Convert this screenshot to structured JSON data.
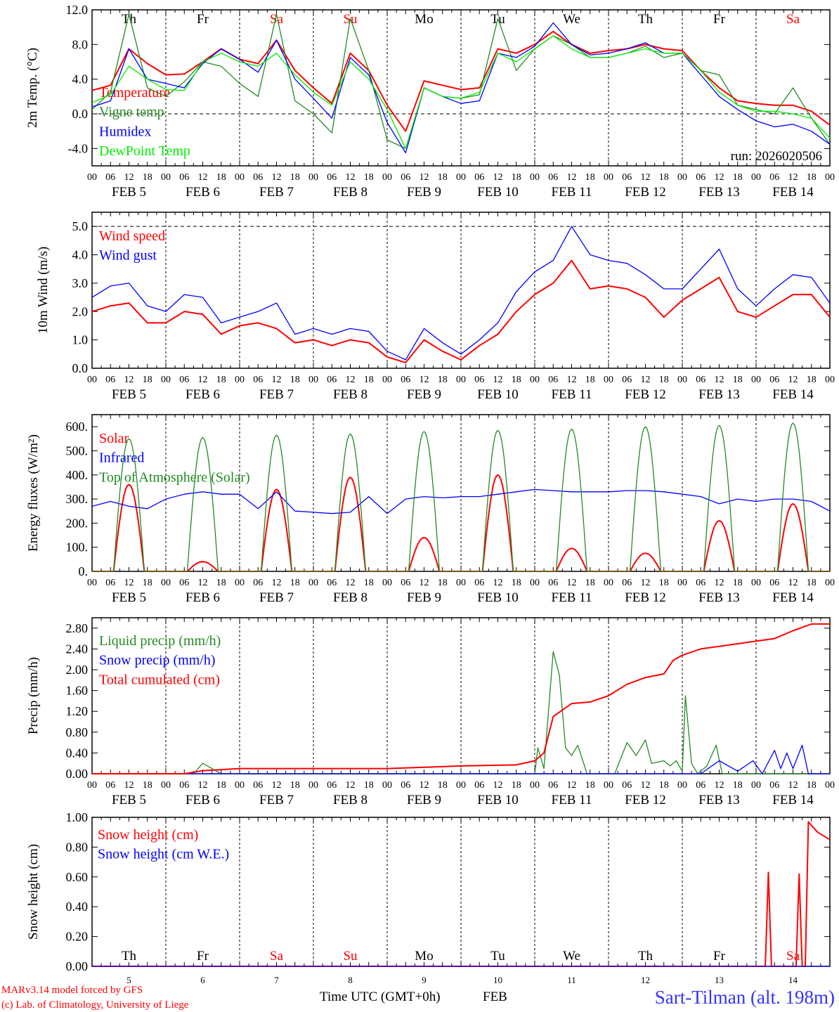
{
  "colors": {
    "red": "#ff0000",
    "green": "#228b22",
    "blue": "#0000ff",
    "lightgreen": "#00ee00",
    "axis": "#000000"
  },
  "hour_labels": [
    "00",
    "06",
    "12",
    "18"
  ],
  "day_dates": [
    "FEB  5",
    "FEB  6",
    "FEB  7",
    "FEB  8",
    "FEB  9",
    "FEB 10",
    "FEB 11",
    "FEB 12",
    "FEB 13",
    "FEB 14"
  ],
  "day_numbers": [
    "5",
    "6",
    "7",
    "8",
    "9",
    "10",
    "11",
    "12",
    "13",
    "14"
  ],
  "weekdays": [
    {
      "label": "Th",
      "weekend": false
    },
    {
      "label": "Fr",
      "weekend": false
    },
    {
      "label": "Sa",
      "weekend": true
    },
    {
      "label": "Su",
      "weekend": true
    },
    {
      "label": "Mo",
      "weekend": false
    },
    {
      "label": "Tu",
      "weekend": false
    },
    {
      "label": "We",
      "weekend": false
    },
    {
      "label": "Th",
      "weekend": false
    },
    {
      "label": "Fr",
      "weekend": false
    },
    {
      "label": "Sa",
      "weekend": true
    }
  ],
  "footer": {
    "model": "MARv3.14 model forced by GFS",
    "copyright": "(c) Lab. of Climatology, University of Liege",
    "xlabel": "Time UTC (GMT+0h)",
    "month": "FEB",
    "station": "Sart-Tilman (alt. 198m)"
  },
  "chart_data": [
    {
      "type": "line",
      "ylabel": "2m Temp. (°C)",
      "ylim": [
        -6,
        12
      ],
      "yticks": [
        "12.0",
        "8.0",
        "4.0",
        "0.0",
        "-4.0"
      ],
      "ytick_values": [
        12,
        8,
        4,
        0,
        -4
      ],
      "ref_line": 0,
      "run": "run: 2026020506",
      "x_unit": "hours since FEB 5 00 UTC",
      "step_hours": 6,
      "series": [
        {
          "name": "Temperature",
          "color": "red",
          "values": [
            2.7,
            3.3,
            7.5,
            5.8,
            4.5,
            4.6,
            6.0,
            7.5,
            6.3,
            5.8,
            8.5,
            5.0,
            3.0,
            1.2,
            7.0,
            5.0,
            1.0,
            -2.0,
            3.8,
            3.3,
            2.8,
            3.0,
            7.5,
            7.0,
            8.0,
            9.5,
            8.0,
            7.0,
            7.3,
            7.5,
            8.0,
            7.5,
            7.3,
            5.0,
            3.0,
            1.5,
            1.2,
            1.0,
            1.0,
            0.3,
            -1.3
          ]
        },
        {
          "name": "Vigne temp",
          "color": "green",
          "values": [
            0.5,
            2.5,
            11.5,
            3.0,
            2.0,
            3.7,
            6.0,
            5.5,
            3.5,
            2.0,
            11.5,
            1.5,
            0.0,
            -2.2,
            11.0,
            5.0,
            -3.0,
            -4.0,
            3.0,
            2.0,
            1.8,
            2.2,
            11.0,
            5.0,
            7.5,
            9.0,
            8.0,
            6.5,
            6.5,
            7.0,
            7.8,
            6.5,
            7.0,
            5.0,
            4.5,
            1.0,
            0.5,
            0.0,
            3.0,
            -0.5,
            -3.5
          ]
        },
        {
          "name": "Humidex",
          "color": "blue",
          "values": [
            0.8,
            1.5,
            7.5,
            4.0,
            3.5,
            3.0,
            5.8,
            7.5,
            6.3,
            4.8,
            8.5,
            4.0,
            1.8,
            -0.5,
            6.5,
            4.5,
            -1.0,
            -4.5,
            3.0,
            2.0,
            1.2,
            1.5,
            7.0,
            6.5,
            7.8,
            10.5,
            8.0,
            6.8,
            7.0,
            7.5,
            8.2,
            7.0,
            7.0,
            4.5,
            2.0,
            0.5,
            -0.8,
            -1.5,
            -1.2,
            -2.0,
            -3.5
          ]
        },
        {
          "name": "DewPoint Temp",
          "color": "lightgreen",
          "values": [
            1.3,
            2.2,
            5.5,
            4.0,
            2.8,
            2.7,
            6.0,
            7.0,
            6.0,
            5.5,
            7.0,
            4.5,
            2.5,
            1.0,
            6.0,
            4.0,
            0.5,
            -4.0,
            3.0,
            2.0,
            1.8,
            2.5,
            7.0,
            6.0,
            7.5,
            9.0,
            7.5,
            6.5,
            6.5,
            7.0,
            7.5,
            7.0,
            7.0,
            5.0,
            2.5,
            1.0,
            0.3,
            0.3,
            0.0,
            -0.5,
            -2.8
          ]
        }
      ]
    },
    {
      "type": "line",
      "ylabel": "10m Wind (m/s)",
      "ylim": [
        0,
        5.5
      ],
      "yticks": [
        "5.0",
        "4.0",
        "3.0",
        "2.0",
        "1.0",
        "0.0"
      ],
      "ytick_values": [
        5,
        4,
        3,
        2,
        1,
        0
      ],
      "ref_line": 5,
      "step_hours": 6,
      "series": [
        {
          "name": "Wind speed",
          "color": "red",
          "values": [
            2.0,
            2.2,
            2.3,
            1.6,
            1.6,
            2.0,
            1.9,
            1.2,
            1.5,
            1.6,
            1.4,
            0.9,
            1.0,
            0.8,
            1.0,
            0.9,
            0.4,
            0.2,
            1.0,
            0.6,
            0.3,
            0.8,
            1.2,
            2.0,
            2.6,
            3.0,
            3.8,
            2.8,
            2.9,
            2.8,
            2.5,
            1.8,
            2.4,
            2.8,
            3.2,
            2.0,
            1.8,
            2.2,
            2.6,
            2.6,
            1.8
          ]
        },
        {
          "name": "Wind gust",
          "color": "blue",
          "values": [
            2.5,
            2.9,
            3.0,
            2.2,
            2.0,
            2.6,
            2.5,
            1.6,
            1.8,
            2.0,
            2.3,
            1.2,
            1.4,
            1.2,
            1.4,
            1.3,
            0.6,
            0.3,
            1.4,
            0.9,
            0.5,
            1.0,
            1.6,
            2.7,
            3.4,
            3.8,
            5.0,
            4.0,
            3.8,
            3.7,
            3.3,
            2.8,
            2.8,
            3.5,
            4.2,
            2.8,
            2.2,
            2.8,
            3.3,
            3.2,
            2.3
          ]
        }
      ]
    },
    {
      "type": "line",
      "ylabel": "Energy fluxes (W/m²)",
      "ylim": [
        0,
        650
      ],
      "yticks": [
        "600.",
        "500.",
        "400.",
        "300.",
        "200.",
        "100.",
        "0."
      ],
      "ytick_values": [
        600,
        500,
        400,
        300,
        200,
        100,
        0
      ],
      "series": [
        {
          "name": "Solar",
          "color": "red",
          "daily_peak": [
            360,
            40,
            340,
            390,
            140,
            400,
            95,
            75,
            210,
            280
          ]
        },
        {
          "name": "Infrared",
          "color": "blue",
          "step_hours": 6,
          "values": [
            270,
            290,
            270,
            260,
            300,
            320,
            330,
            320,
            320,
            260,
            330,
            250,
            245,
            240,
            245,
            310,
            240,
            300,
            310,
            305,
            310,
            310,
            320,
            330,
            340,
            335,
            330,
            330,
            330,
            335,
            335,
            330,
            320,
            310,
            280,
            300,
            290,
            300,
            300,
            290,
            250
          ]
        },
        {
          "name": "Top of Atmosphere (Solar)",
          "color": "green",
          "daily_peak": [
            550,
            555,
            565,
            570,
            580,
            585,
            590,
            600,
            605,
            615
          ]
        }
      ]
    },
    {
      "type": "line",
      "ylabel": "Precip (mm/h)",
      "ylim": [
        0,
        3.0
      ],
      "yticks": [
        "2.80",
        "2.40",
        "2.00",
        "1.60",
        "1.20",
        "0.80",
        "0.40",
        "0.00"
      ],
      "ytick_values": [
        2.8,
        2.4,
        2.0,
        1.6,
        1.2,
        0.8,
        0.4,
        0
      ],
      "series": [
        {
          "name": "Liquid precip (mm/h)",
          "color": "green",
          "points": [
            [
              0,
              0
            ],
            [
              33,
              0
            ],
            [
              36,
              0.2
            ],
            [
              39,
              0.1
            ],
            [
              42,
              0
            ],
            [
              144,
              0
            ],
            [
              145,
              0.5
            ],
            [
              147,
              0.1
            ],
            [
              150,
              2.35
            ],
            [
              152,
              1.9
            ],
            [
              154,
              0.5
            ],
            [
              156,
              0.35
            ],
            [
              158,
              0.55
            ],
            [
              161,
              0
            ],
            [
              170,
              0
            ],
            [
              174,
              0.6
            ],
            [
              177,
              0.35
            ],
            [
              180,
              0.65
            ],
            [
              182,
              0.2
            ],
            [
              186,
              0.25
            ],
            [
              188,
              0.15
            ],
            [
              190,
              0.25
            ],
            [
              192,
              0.05
            ],
            [
              193,
              1.5
            ],
            [
              195,
              0.2
            ],
            [
              197,
              0
            ],
            [
              200,
              0.15
            ],
            [
              203,
              0.55
            ],
            [
              205,
              0
            ],
            [
              240,
              0
            ]
          ]
        },
        {
          "name": "Snow precip (mm/h)",
          "color": "blue",
          "points": [
            [
              0,
              0
            ],
            [
              198,
              0
            ],
            [
              204,
              0.25
            ],
            [
              210,
              0.05
            ],
            [
              215,
              0.25
            ],
            [
              218,
              0
            ],
            [
              222,
              0.45
            ],
            [
              224,
              0.1
            ],
            [
              226,
              0.4
            ],
            [
              228,
              0.1
            ],
            [
              231,
              0.55
            ],
            [
              233,
              0
            ],
            [
              240,
              0
            ]
          ]
        },
        {
          "name": "Total cumulated (cm)",
          "color": "red",
          "points": [
            [
              0,
              0
            ],
            [
              30,
              0
            ],
            [
              36,
              0.06
            ],
            [
              42,
              0.08
            ],
            [
              48,
              0.1
            ],
            [
              96,
              0.1
            ],
            [
              120,
              0.15
            ],
            [
              138,
              0.17
            ],
            [
              144,
              0.25
            ],
            [
              147,
              0.4
            ],
            [
              150,
              1.1
            ],
            [
              156,
              1.35
            ],
            [
              162,
              1.38
            ],
            [
              168,
              1.5
            ],
            [
              174,
              1.72
            ],
            [
              180,
              1.85
            ],
            [
              186,
              1.92
            ],
            [
              189,
              2.18
            ],
            [
              192,
              2.28
            ],
            [
              198,
              2.4
            ],
            [
              204,
              2.45
            ],
            [
              210,
              2.5
            ],
            [
              216,
              2.55
            ],
            [
              222,
              2.6
            ],
            [
              228,
              2.75
            ],
            [
              234,
              2.88
            ],
            [
              240,
              2.88
            ]
          ]
        }
      ]
    },
    {
      "type": "line",
      "ylabel": "Snow height (cm)",
      "ylim": [
        0,
        1.0
      ],
      "yticks": [
        "1.00",
        "0.80",
        "0.60",
        "0.40",
        "0.20",
        "0.00"
      ],
      "ytick_values": [
        1,
        0.8,
        0.6,
        0.4,
        0.2,
        0
      ],
      "series": [
        {
          "name": "Snow height (cm)",
          "color": "red",
          "points": [
            [
              0,
              0
            ],
            [
              219,
              0
            ],
            [
              220,
              0.63
            ],
            [
              221,
              0
            ],
            [
              229,
              0
            ],
            [
              230,
              0.62
            ],
            [
              231,
              0
            ],
            [
              232,
              0
            ],
            [
              233,
              0.97
            ],
            [
              236,
              0.9
            ],
            [
              240,
              0.85
            ]
          ]
        },
        {
          "name": "Snow height (cm W.E.)",
          "color": "blue",
          "points": [
            [
              0,
              0
            ],
            [
              240,
              0
            ]
          ]
        }
      ]
    }
  ]
}
